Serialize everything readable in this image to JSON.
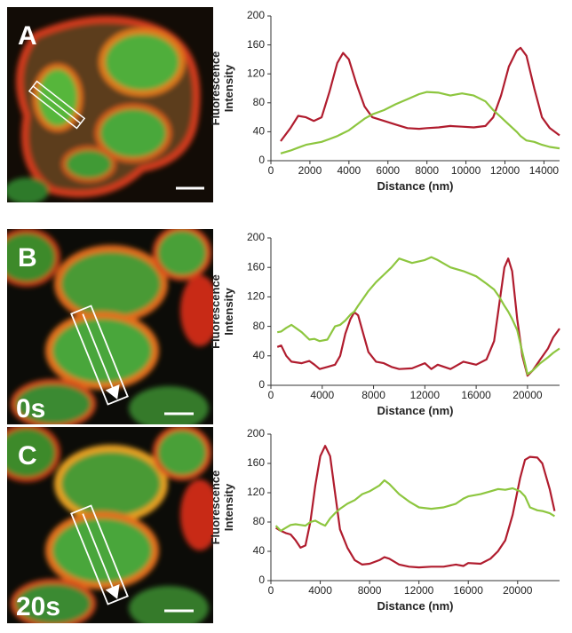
{
  "panels": [
    {
      "label": "A"
    },
    {
      "label": "B",
      "time": "0s"
    },
    {
      "label": "C",
      "time": "20s"
    }
  ],
  "chart_data": [
    {
      "type": "line",
      "ylabel": [
        "Fluorescence",
        "Intensity"
      ],
      "xlabel": "Distance (nm)",
      "x": [
        500,
        1000,
        1400,
        1800,
        2200,
        2600,
        3000,
        3400,
        3700,
        4000,
        4400,
        4800,
        5200,
        5800,
        6400,
        7000,
        7600,
        8000,
        8600,
        9200,
        9800,
        10400,
        11000,
        11400,
        11800,
        12200,
        12600,
        12800,
        13100,
        13500,
        13900,
        14300,
        14800
      ],
      "series": [
        {
          "color": "#b01c2e",
          "values": [
            27,
            45,
            62,
            60,
            55,
            60,
            95,
            135,
            149,
            140,
            105,
            75,
            60,
            55,
            50,
            45,
            44,
            45,
            46,
            48,
            47,
            46,
            48,
            60,
            90,
            130,
            152,
            156,
            145,
            100,
            60,
            45,
            35
          ]
        },
        {
          "color": "#8dc63f",
          "values": [
            10,
            14,
            18,
            22,
            24,
            26,
            30,
            34,
            38,
            42,
            50,
            58,
            64,
            70,
            78,
            85,
            92,
            95,
            94,
            90,
            93,
            90,
            82,
            70,
            60,
            50,
            40,
            34,
            28,
            26,
            22,
            19,
            17
          ]
        }
      ],
      "xlim": [
        0,
        14800
      ],
      "ylim": [
        0,
        200
      ],
      "xticks": [
        0,
        2000,
        4000,
        6000,
        8000,
        10000,
        12000,
        14000
      ],
      "yticks": [
        0,
        40,
        80,
        120,
        160,
        200
      ]
    },
    {
      "type": "line",
      "ylabel": [
        "Fluorescence",
        "Intensity"
      ],
      "xlabel": "Distance (nm)",
      "x": [
        500,
        800,
        1200,
        1600,
        2400,
        3000,
        3400,
        3800,
        4400,
        5000,
        5400,
        5800,
        6200,
        6500,
        6800,
        7200,
        7600,
        8200,
        8800,
        9400,
        10000,
        11000,
        12000,
        12500,
        13000,
        14000,
        15000,
        16000,
        16800,
        17400,
        17800,
        18200,
        18500,
        18800,
        19200,
        19600,
        20000,
        20400,
        21000,
        21600,
        22000,
        22500
      ],
      "series": [
        {
          "color": "#b01c2e",
          "values": [
            52,
            54,
            40,
            32,
            30,
            33,
            28,
            22,
            25,
            28,
            40,
            70,
            90,
            99,
            95,
            70,
            45,
            32,
            30,
            25,
            22,
            23,
            30,
            22,
            28,
            22,
            32,
            28,
            35,
            60,
            110,
            160,
            172,
            155,
            90,
            40,
            13,
            20,
            35,
            50,
            65,
            77
          ]
        },
        {
          "color": "#8dc63f",
          "values": [
            72,
            73,
            78,
            82,
            72,
            62,
            63,
            60,
            62,
            80,
            82,
            88,
            96,
            100,
            108,
            118,
            128,
            140,
            150,
            160,
            172,
            166,
            170,
            174,
            170,
            160,
            155,
            148,
            138,
            130,
            120,
            108,
            100,
            90,
            75,
            45,
            15,
            20,
            30,
            38,
            44,
            50
          ]
        }
      ],
      "xlim": [
        0,
        22500
      ],
      "ylim": [
        0,
        200
      ],
      "xticks": [
        0,
        4000,
        8000,
        12000,
        16000,
        20000
      ],
      "yticks": [
        0,
        40,
        80,
        120,
        160,
        200
      ]
    },
    {
      "type": "line",
      "ylabel": [
        "Fluorescence",
        "Intensity"
      ],
      "xlabel": "Distance (nm)",
      "x": [
        400,
        800,
        1200,
        1600,
        2000,
        2400,
        2800,
        3200,
        3600,
        4000,
        4400,
        4800,
        5200,
        5600,
        6200,
        6800,
        7400,
        8000,
        8800,
        9200,
        9600,
        10400,
        11200,
        12000,
        13000,
        14000,
        15000,
        15600,
        16000,
        17000,
        17800,
        18400,
        19000,
        19600,
        20200,
        20600,
        21000,
        21600,
        22000,
        22600,
        23000
      ],
      "series": [
        {
          "color": "#b01c2e",
          "values": [
            72,
            68,
            65,
            63,
            55,
            45,
            48,
            80,
            130,
            170,
            184,
            170,
            120,
            70,
            45,
            28,
            22,
            23,
            28,
            32,
            30,
            22,
            19,
            18,
            19,
            19,
            22,
            20,
            24,
            23,
            30,
            40,
            55,
            90,
            140,
            165,
            169,
            168,
            160,
            125,
            95
          ]
        },
        {
          "color": "#8dc63f",
          "values": [
            75,
            68,
            72,
            76,
            77,
            76,
            75,
            80,
            82,
            78,
            75,
            85,
            92,
            98,
            105,
            110,
            118,
            122,
            130,
            137,
            132,
            118,
            108,
            100,
            98,
            100,
            105,
            112,
            115,
            118,
            122,
            125,
            124,
            126,
            122,
            115,
            100,
            96,
            95,
            92,
            88
          ]
        }
      ],
      "xlim": [
        0,
        23400
      ],
      "ylim": [
        0,
        200
      ],
      "xticks": [
        0,
        4000,
        8000,
        12000,
        16000,
        20000
      ],
      "yticks": [
        0,
        40,
        80,
        120,
        160,
        200
      ]
    }
  ]
}
